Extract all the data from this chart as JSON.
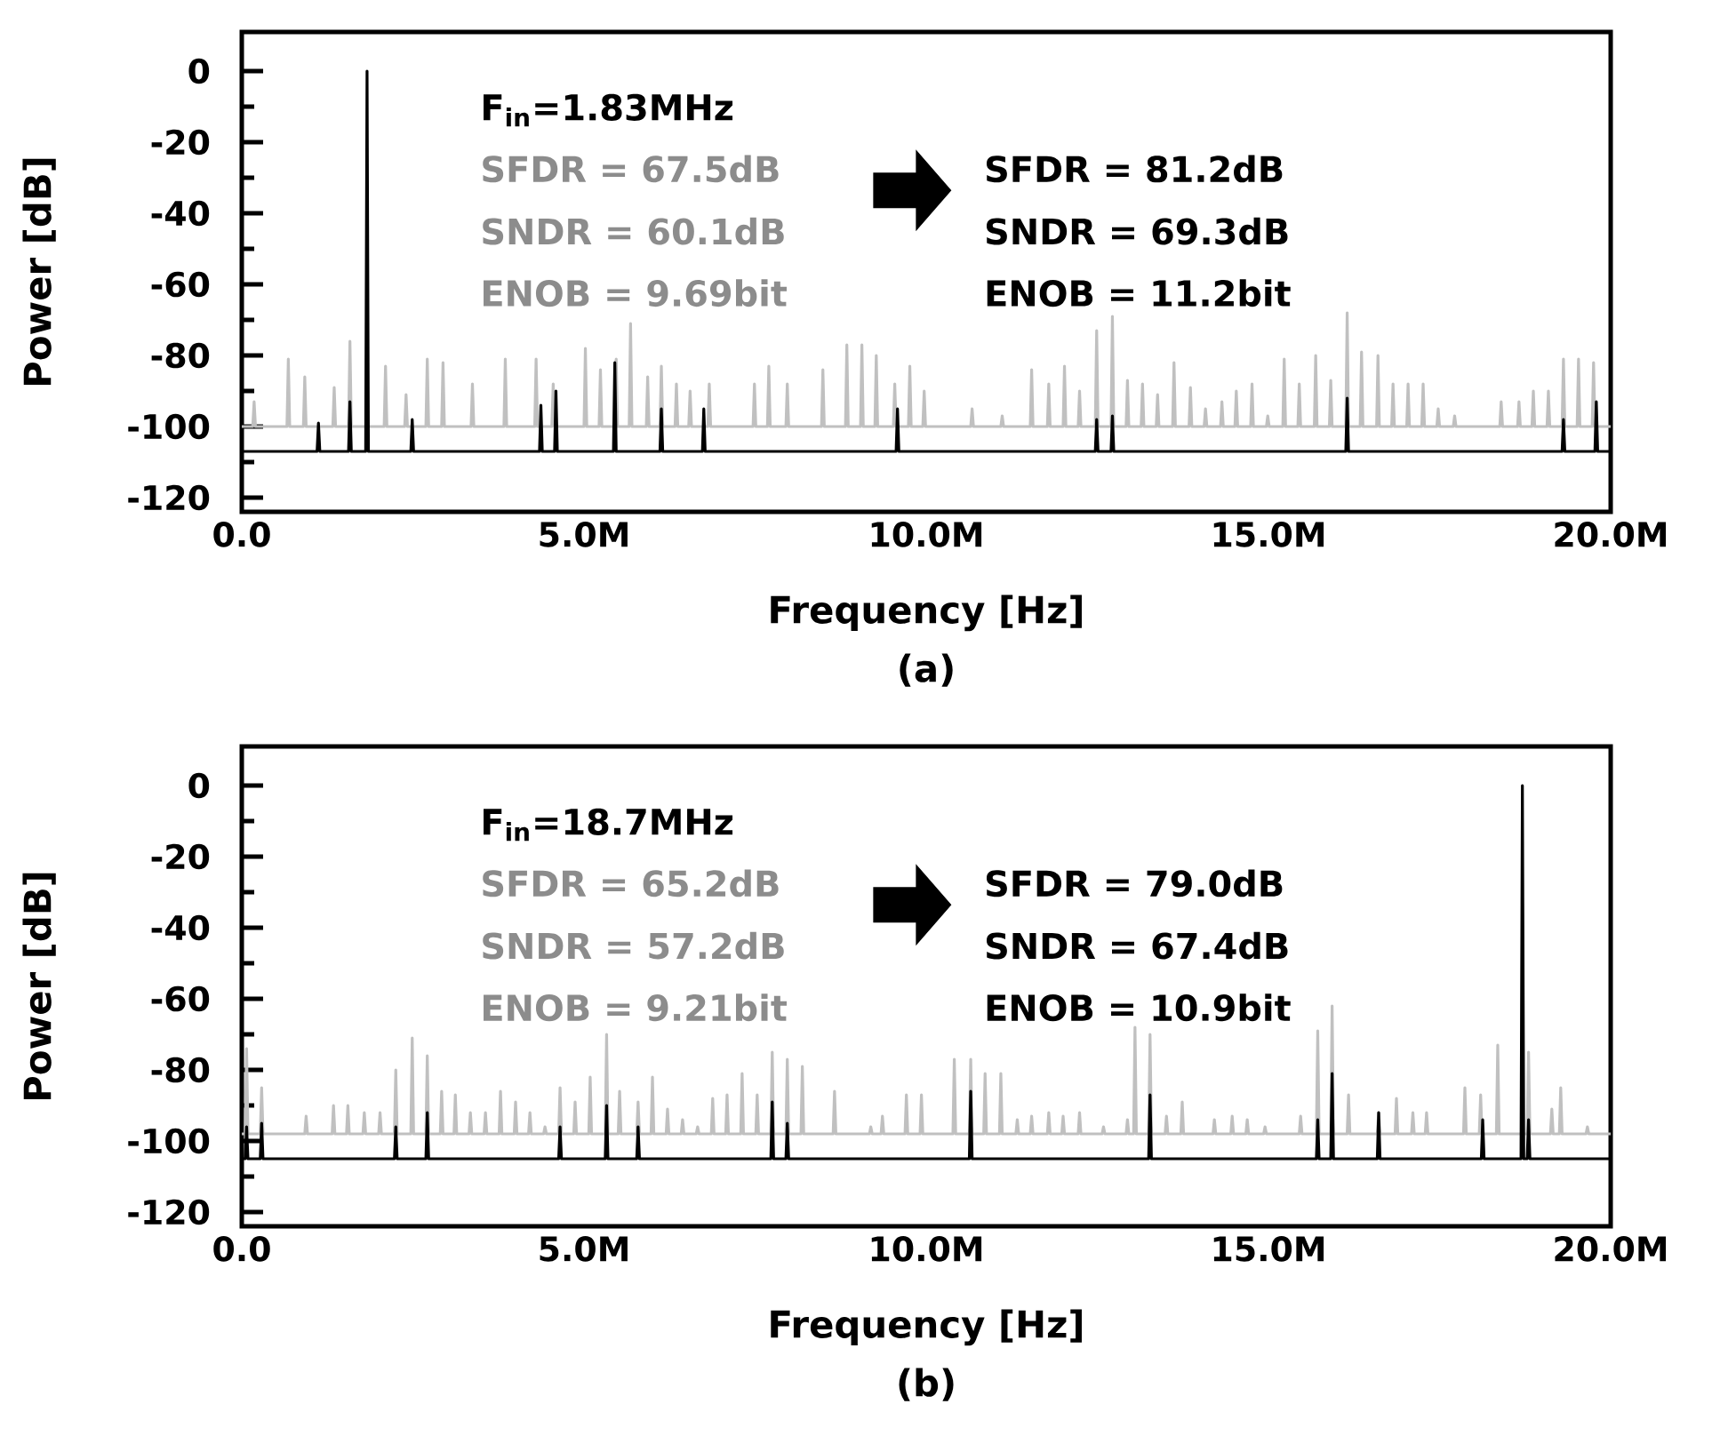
{
  "chart_data": [
    {
      "type": "line",
      "title": "(a)",
      "xlabel": "Frequency [Hz]",
      "ylabel": "Power [dB]",
      "annotations": [
        "F$_{in}$=1.83MHz",
        "SFDR = 67.5dB",
        "SNDR = 60.1dB",
        "ENOB = 9.69bit",
        "SFDR = 81.2dB",
        "SNDR = 69.3dB",
        "ENOB = 11.2bit"
      ],
      "xlim": [
        0,
        20000000.0
      ],
      "xticks": [
        {
          "value": 0,
          "label": "0.0"
        },
        {
          "value": 5000000.0,
          "label": "5.0M"
        },
        {
          "value": 10000000.0,
          "label": "10.0M"
        },
        {
          "value": 15000000.0,
          "label": "15.0M"
        },
        {
          "value": 20000000.0,
          "label": "20.0M"
        }
      ],
      "ylim": [
        -124,
        11
      ],
      "yticks": [
        0,
        -20,
        -40,
        -60,
        -80,
        -100,
        -120
      ],
      "series": [
        {
          "color": "#c0c0c0",
          "x": [
            0,
            160000.0,
            180000.0,
            200000.0,
            660000.0,
            680000.0,
            700000.0,
            900000.0,
            920000.0,
            940000.0,
            1330000.0,
            1350000.0,
            1370000.0,
            1560000.0,
            1580000.0,
            1600000.0,
            2080000.0,
            2100000.0,
            2120000.0,
            2380000.0,
            2400000.0,
            2420000.0,
            2690000.0,
            2710000.0,
            2730000.0,
            2920000.0,
            2940000.0,
            2960000.0,
            3350000.0,
            3370000.0,
            3390000.0,
            3830000.0,
            3850000.0,
            3870000.0,
            4280000.0,
            4300000.0,
            4320000.0,
            4530000.0,
            4550000.0,
            4570000.0,
            5000000.0,
            5020000.0,
            5040000.0,
            5220000.0,
            5240000.0,
            5260000.0,
            5450000.0,
            5470000.0,
            5490000.0,
            5660000.0,
            5680000.0,
            5700000.0,
            5910000.0,
            5930000.0,
            5950000.0,
            6110000.0,
            6130000.0,
            6150000.0,
            6330000.0,
            6350000.0,
            6370000.0,
            6530000.0,
            6550000.0,
            6570000.0,
            6810000.0,
            6830000.0,
            6850000.0,
            7470000.0,
            7490000.0,
            7510000.0,
            7680000.0,
            7700000.0,
            7720000.0,
            7950000.0,
            7970000.0,
            7990000.0,
            8470000.0,
            8490000.0,
            8510000.0,
            8820000.0,
            8840000.0,
            8860000.0,
            9040000.0,
            9060000.0,
            9080000.0,
            9250000.0,
            9270000.0,
            9290000.0,
            9520000.0,
            9540000.0,
            9560000.0,
            9740000.0,
            9760000.0,
            9780000.0,
            9950000.0,
            9970000.0,
            9990000.0,
            10650000.0,
            10670000.0,
            10690000.0,
            11090000.0,
            11110000.0,
            11130000.0,
            11520000.0,
            11540000.0,
            11560000.0,
            11770000.0,
            11790000.0,
            11810000.0,
            12000000.0,
            12020000.0,
            12040000.0,
            12220000.0,
            12240000.0,
            12260000.0,
            12470000.0,
            12490000.0,
            12510000.0,
            12700000.0,
            12720000.0,
            12740000.0,
            12920000.0,
            12940000.0,
            12960000.0,
            13140000.0,
            13160000.0,
            13180000.0,
            13360000.0,
            13380000.0,
            13400000.0,
            13600000.0,
            13620000.0,
            13640000.0,
            13840000.0,
            13860000.0,
            13880000.0,
            14060000.0,
            14080000.0,
            14100000.0,
            14300000.0,
            14320000.0,
            14340000.0,
            14510000.0,
            14530000.0,
            14550000.0,
            14740000.0,
            14760000.0,
            14780000.0,
            14970000.0,
            14990000.0,
            15010000.0,
            15210000.0,
            15230000.0,
            15250000.0,
            15430000.0,
            15450000.0,
            15470000.0,
            15670000.0,
            15690000.0,
            15710000.0,
            15890000.0,
            15910000.0,
            15930000.0,
            16130000.0,
            16150000.0,
            16170000.0,
            16340000.0,
            16360000.0,
            16380000.0,
            16580000.0,
            16600000.0,
            16620000.0,
            16800000.0,
            16820000.0,
            16840000.0,
            17020000.0,
            17040000.0,
            17060000.0,
            17240000.0,
            17260000.0,
            17280000.0,
            17460000.0,
            17480000.0,
            17500000.0,
            17700000.0,
            17720000.0,
            17740000.0,
            18380000.0,
            18400000.0,
            18420000.0,
            18640000.0,
            18660000.0,
            18680000.0,
            18850000.0,
            18870000.0,
            18890000.0,
            19070000.0,
            19090000.0,
            19110000.0,
            19290000.0,
            19310000.0,
            19330000.0,
            19510000.0,
            19530000.0,
            19550000.0,
            19730000.0,
            19750000.0,
            19770000.0,
            20000000.0
          ],
          "values": [
            -100,
            -100,
            -93,
            -100,
            -100,
            -81,
            -100,
            -100,
            -86,
            -100,
            -100,
            -89,
            -100,
            -100,
            -76,
            -100,
            -100,
            -83,
            -100,
            -100,
            -91,
            -100,
            -100,
            -81,
            -100,
            -100,
            -82,
            -100,
            -100,
            -88,
            -100,
            -100,
            -81,
            -100,
            -100,
            -81,
            -100,
            -100,
            -88,
            -100,
            -100,
            -78,
            -100,
            -100,
            -84,
            -100,
            -100,
            -81,
            -100,
            -100,
            -71,
            -100,
            -100,
            -86,
            -100,
            -100,
            -83,
            -100,
            -100,
            -88,
            -100,
            -100,
            -90,
            -100,
            -100,
            -88,
            -100,
            -100,
            -88,
            -100,
            -100,
            -83,
            -100,
            -100,
            -88,
            -100,
            -100,
            -84,
            -100,
            -100,
            -77,
            -100,
            -100,
            -77,
            -100,
            -100,
            -80,
            -100,
            -100,
            -88,
            -100,
            -100,
            -83,
            -100,
            -100,
            -90,
            -100,
            -100,
            -95,
            -100,
            -100,
            -97,
            -100,
            -100,
            -84,
            -100,
            -100,
            -88,
            -100,
            -100,
            -83,
            -100,
            -100,
            -90,
            -100,
            -100,
            -73,
            -100,
            -100,
            -69,
            -100,
            -100,
            -87,
            -100,
            -100,
            -88,
            -100,
            -100,
            -91,
            -100,
            -100,
            -82,
            -100,
            -100,
            -89,
            -100,
            -100,
            -95,
            -100,
            -100,
            -93,
            -100,
            -100,
            -90,
            -100,
            -100,
            -88,
            -100,
            -100,
            -97,
            -100,
            -100,
            -81,
            -100,
            -100,
            -88,
            -100,
            -100,
            -80,
            -100,
            -100,
            -87,
            -100,
            -100,
            -68,
            -100,
            -100,
            -79,
            -100,
            -100,
            -80,
            -100,
            -100,
            -88,
            -100,
            -100,
            -88,
            -100,
            -100,
            -88,
            -100,
            -100,
            -95,
            -100,
            -100,
            -97,
            -100,
            -100,
            -93,
            -100,
            -100,
            -93,
            -100,
            -100,
            -90,
            -100,
            -100,
            -90,
            -100,
            -100,
            -81,
            -100,
            -100,
            -81,
            -100,
            -100,
            -82,
            -100,
            -100
          ]
        },
        {
          "color": "#000000",
          "x": [
            0,
            1100000.0,
            1120000.0,
            1140000.0,
            1560000.0,
            1580000.0,
            1600000.0,
            1810000.0,
            1830000.0,
            1850000.0,
            2470000.0,
            2490000.0,
            2510000.0,
            4350000.0,
            4370000.0,
            4390000.0,
            4570000.0,
            4590000.0,
            4610000.0,
            5430000.0,
            5450000.0,
            5470000.0,
            6110000.0,
            6130000.0,
            6150000.0,
            6730000.0,
            6750000.0,
            6770000.0,
            9560000.0,
            9580000.0,
            9600000.0,
            12470000.0,
            12490000.0,
            12510000.0,
            12700000.0,
            12720000.0,
            12740000.0,
            16130000.0,
            16150000.0,
            16170000.0,
            19290000.0,
            19310000.0,
            19330000.0,
            19770000.0,
            19790000.0,
            19810000.0,
            20000000.0
          ],
          "values": [
            -107,
            -107,
            -99,
            -107,
            -107,
            -93,
            -107,
            -107,
            0,
            -107,
            -107,
            -98,
            -107,
            -107,
            -94,
            -107,
            -107,
            -90,
            -107,
            -107,
            -82,
            -107,
            -107,
            -95,
            -107,
            -107,
            -95,
            -107,
            -107,
            -95,
            -107,
            -107,
            -98,
            -107,
            -107,
            -97,
            -107,
            -107,
            -92,
            -107,
            -107,
            -98,
            -107,
            -107,
            -93,
            -107,
            -107
          ]
        }
      ]
    },
    {
      "type": "line",
      "title": "(b)",
      "xlabel": "Frequency [Hz]",
      "ylabel": "Power [dB]",
      "annotations": [
        "F$_{in}$=18.7MHz",
        "SFDR = 65.2dB",
        "SNDR = 57.2dB",
        "ENOB = 9.21bit",
        "SFDR = 79.0dB",
        "SNDR = 67.4dB",
        "ENOB = 10.9bit"
      ],
      "xlim": [
        0,
        20000000.0
      ],
      "xticks": [
        {
          "value": 0,
          "label": "0.0"
        },
        {
          "value": 5000000.0,
          "label": "5.0M"
        },
        {
          "value": 10000000.0,
          "label": "10.0M"
        },
        {
          "value": 15000000.0,
          "label": "15.0M"
        },
        {
          "value": 20000000.0,
          "label": "20.0M"
        }
      ],
      "ylim": [
        -124,
        11
      ],
      "yticks": [
        0,
        -20,
        -40,
        -60,
        -80,
        -100,
        -120
      ],
      "series": [
        {
          "color": "#c0c0c0",
          "x": [
            0,
            50000.0,
            70000.0,
            90000.0,
            270000.0,
            290000.0,
            310000.0,
            920000.0,
            940000.0,
            960000.0,
            1320000.0,
            1340000.0,
            1360000.0,
            1530000.0,
            1550000.0,
            1570000.0,
            1770000.0,
            1790000.0,
            1810000.0,
            2000000.0,
            2020000.0,
            2040000.0,
            2230000.0,
            2250000.0,
            2270000.0,
            2470000.0,
            2490000.0,
            2510000.0,
            2690000.0,
            2710000.0,
            2730000.0,
            2900000.0,
            2920000.0,
            2940000.0,
            3100000.0,
            3120000.0,
            3140000.0,
            3320000.0,
            3340000.0,
            3360000.0,
            3540000.0,
            3560000.0,
            3580000.0,
            3760000.0,
            3780000.0,
            3800000.0,
            3980000.0,
            4000000.0,
            4020000.0,
            4190000.0,
            4210000.0,
            4230000.0,
            4410000.0,
            4430000.0,
            4450000.0,
            4630000.0,
            4650000.0,
            4670000.0,
            4850000.0,
            4870000.0,
            4890000.0,
            5070000.0,
            5090000.0,
            5110000.0,
            5310000.0,
            5330000.0,
            5350000.0,
            5500000.0,
            5520000.0,
            5540000.0,
            5770000.0,
            5790000.0,
            5810000.0,
            5980000.0,
            6000000.0,
            6020000.0,
            6200000.0,
            6220000.0,
            6240000.0,
            6420000.0,
            6440000.0,
            6460000.0,
            6640000.0,
            6660000.0,
            6680000.0,
            6860000.0,
            6880000.0,
            6900000.0,
            7070000.0,
            7090000.0,
            7110000.0,
            7290000.0,
            7310000.0,
            7330000.0,
            7510000.0,
            7530000.0,
            7550000.0,
            7730000.0,
            7750000.0,
            7770000.0,
            7950000.0,
            7970000.0,
            7990000.0,
            8170000.0,
            8190000.0,
            8210000.0,
            8640000.0,
            8660000.0,
            8680000.0,
            9170000.0,
            9190000.0,
            9210000.0,
            9340000.0,
            9360000.0,
            9380000.0,
            9690000.0,
            9710000.0,
            9730000.0,
            9910000.0,
            9930000.0,
            9950000.0,
            10390000.0,
            10410000.0,
            10430000.0,
            10630000.0,
            10650000.0,
            10670000.0,
            10840000.0,
            10860000.0,
            10880000.0,
            11070000.0,
            11090000.0,
            11110000.0,
            11310000.0,
            11330000.0,
            11350000.0,
            11520000.0,
            11540000.0,
            11560000.0,
            11770000.0,
            11790000.0,
            11810000.0,
            11980000.0,
            12000000.0,
            12020000.0,
            12220000.0,
            12240000.0,
            12260000.0,
            12570000.0,
            12590000.0,
            12610000.0,
            12920000.0,
            12940000.0,
            12960000.0,
            13030000.0,
            13050000.0,
            13070000.0,
            13250000.0,
            13270000.0,
            13290000.0,
            13490000.0,
            13510000.0,
            13530000.0,
            13720000.0,
            13740000.0,
            13760000.0,
            14190000.0,
            14210000.0,
            14230000.0,
            14450000.0,
            14470000.0,
            14490000.0,
            14670000.0,
            14690000.0,
            14710000.0,
            14930000.0,
            14950000.0,
            14970000.0,
            15450000.0,
            15470000.0,
            15490000.0,
            15700000.0,
            15720000.0,
            15740000.0,
            15910000.0,
            15930000.0,
            15950000.0,
            16150000.0,
            16170000.0,
            16190000.0,
            16590000.0,
            16610000.0,
            16630000.0,
            16850000.0,
            16870000.0,
            16890000.0,
            17090000.0,
            17110000.0,
            17130000.0,
            17290000.0,
            17310000.0,
            17330000.0,
            17850000.0,
            17870000.0,
            17890000.0,
            18080000.0,
            18100000.0,
            18120000.0,
            18330000.0,
            18350000.0,
            18370000.0,
            18780000.0,
            18800000.0,
            18820000.0,
            19120000.0,
            19140000.0,
            19160000.0,
            19250000.0,
            19270000.0,
            19290000.0,
            19640000.0,
            19660000.0,
            19680000.0,
            20000000.0
          ],
          "values": [
            -98,
            -98,
            -74,
            -98,
            -98,
            -85,
            -98,
            -98,
            -93,
            -98,
            -98,
            -90,
            -98,
            -98,
            -90,
            -98,
            -98,
            -92,
            -98,
            -98,
            -92,
            -98,
            -98,
            -80,
            -98,
            -98,
            -71,
            -98,
            -98,
            -76,
            -98,
            -98,
            -86,
            -98,
            -98,
            -87,
            -98,
            -98,
            -92,
            -98,
            -98,
            -92,
            -98,
            -98,
            -86,
            -98,
            -98,
            -89,
            -98,
            -98,
            -92,
            -98,
            -98,
            -96,
            -98,
            -98,
            -85,
            -98,
            -98,
            -89,
            -98,
            -98,
            -82,
            -98,
            -98,
            -70,
            -98,
            -98,
            -86,
            -98,
            -98,
            -89,
            -98,
            -98,
            -82,
            -98,
            -98,
            -91,
            -98,
            -98,
            -94,
            -98,
            -98,
            -96,
            -98,
            -98,
            -88,
            -98,
            -98,
            -87,
            -98,
            -98,
            -81,
            -98,
            -98,
            -87,
            -98,
            -98,
            -75,
            -98,
            -98,
            -77,
            -98,
            -98,
            -79,
            -98,
            -98,
            -86,
            -98,
            -98,
            -96,
            -98,
            -98,
            -93,
            -98,
            -98,
            -87,
            -98,
            -98,
            -87,
            -98,
            -98,
            -77,
            -98,
            -98,
            -77,
            -98,
            -98,
            -81,
            -98,
            -98,
            -81,
            -98,
            -98,
            -94,
            -98,
            -98,
            -93,
            -98,
            -98,
            -92,
            -98,
            -98,
            -93,
            -98,
            -98,
            -92,
            -98,
            -98,
            -96,
            -98,
            -98,
            -94,
            -98,
            -98,
            -68,
            -98,
            -98,
            -70,
            -98,
            -98,
            -93,
            -98,
            -98,
            -89,
            -98,
            -98,
            -94,
            -98,
            -98,
            -93,
            -98,
            -98,
            -94,
            -98,
            -98,
            -96,
            -98,
            -98,
            -93,
            -98,
            -98,
            -69,
            -98,
            -98,
            -62,
            -98,
            -98,
            -87,
            -98,
            -98,
            -92,
            -98,
            -98,
            -88,
            -98,
            -98,
            -92,
            -98,
            -98,
            -92,
            -98,
            -98,
            -85,
            -98,
            -98,
            -87,
            -98,
            -98,
            -73,
            -98,
            -98,
            -75,
            -98,
            -98,
            -91,
            -98,
            -98,
            -85,
            -98,
            -98,
            -96,
            -98,
            -98
          ]
        },
        {
          "color": "#000000",
          "x": [
            0,
            50000.0,
            70000.0,
            90000.0,
            270000.0,
            290000.0,
            310000.0,
            2230000.0,
            2250000.0,
            2270000.0,
            2690000.0,
            2710000.0,
            2730000.0,
            4630000.0,
            4650000.0,
            4670000.0,
            5310000.0,
            5330000.0,
            5350000.0,
            5770000.0,
            5790000.0,
            5810000.0,
            7730000.0,
            7750000.0,
            7770000.0,
            7950000.0,
            7970000.0,
            7990000.0,
            10630000.0,
            10650000.0,
            10670000.0,
            13250000.0,
            13270000.0,
            13290000.0,
            15700000.0,
            15720000.0,
            15740000.0,
            15910000.0,
            15930000.0,
            15950000.0,
            16590000.0,
            16610000.0,
            16630000.0,
            18110000.0,
            18130000.0,
            18150000.0,
            18690000.0,
            18710000.0,
            18730000.0,
            18780000.0,
            18800000.0,
            18820000.0,
            20000000.0
          ],
          "values": [
            -105,
            -105,
            -96,
            -105,
            -105,
            -95,
            -105,
            -105,
            -96,
            -105,
            -105,
            -92,
            -105,
            -105,
            -96,
            -105,
            -105,
            -90,
            -105,
            -105,
            -96,
            -105,
            -105,
            -89,
            -105,
            -105,
            -95,
            -105,
            -105,
            -86,
            -105,
            -105,
            -87,
            -105,
            -105,
            -94,
            -105,
            -105,
            -81,
            -105,
            -105,
            -92,
            -105,
            -105,
            -94,
            -105,
            -105,
            0,
            -105,
            -105,
            -94,
            -105,
            -105
          ]
        }
      ]
    }
  ]
}
